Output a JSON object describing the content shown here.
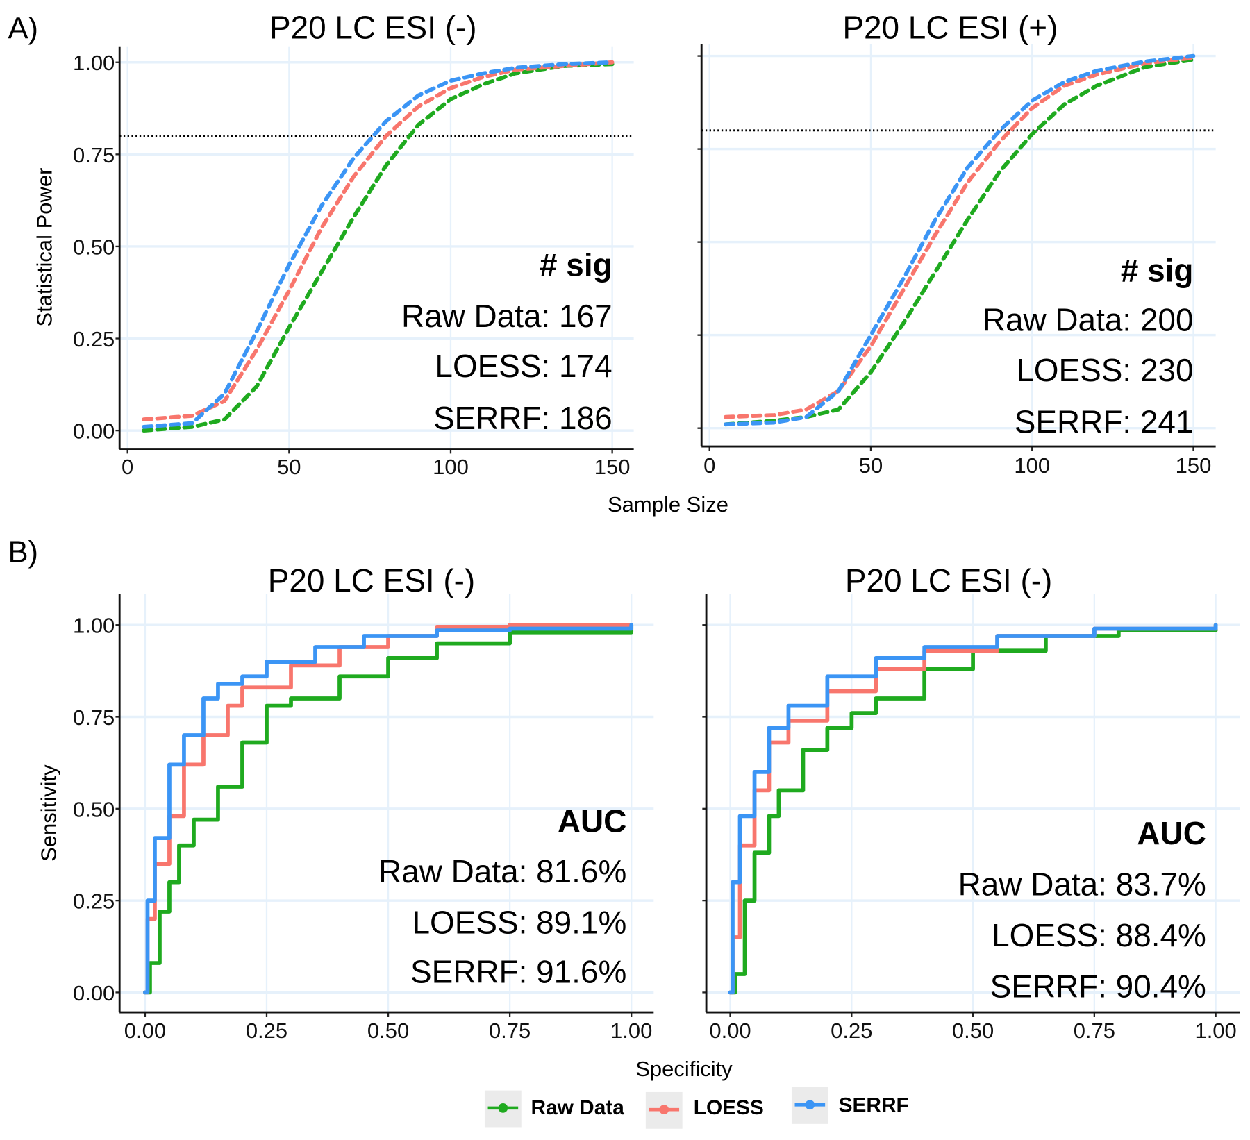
{
  "panel_labels": {
    "a": "A)",
    "b": "B)"
  },
  "annotations": {
    "a_left": {
      "head": "# sig",
      "lines": [
        "Raw Data: 167",
        "LOESS: 174",
        "SERRF: 186"
      ]
    },
    "a_right": {
      "head": "# sig",
      "lines": [
        "Raw Data: 200",
        "LOESS: 230",
        "SERRF: 241"
      ]
    },
    "b_left": {
      "head": "AUC",
      "lines": [
        "Raw Data: 81.6%",
        "LOESS: 89.1%",
        "SERRF: 91.6%"
      ]
    },
    "b_right": {
      "head": "AUC",
      "lines": [
        "Raw Data: 83.7%",
        "LOESS: 88.4%",
        "SERRF: 90.4%"
      ]
    }
  },
  "legend": [
    {
      "name": "Raw Data",
      "color": "#1faa1f"
    },
    {
      "name": "LOESS",
      "color": "#f8766d"
    },
    {
      "name": "SERRF",
      "color": "#3b95f5"
    }
  ],
  "chart_data": [
    {
      "type": "line",
      "title": "P20 LC ESI (-)",
      "xlabel": "Sample Size",
      "ylabel": "Statistical Power",
      "xlim": [
        0,
        150
      ],
      "ylim": [
        0,
        1
      ],
      "xticks": [
        "0",
        "50",
        "100",
        "150"
      ],
      "yticks": [
        "0.00",
        "0.25",
        "0.50",
        "0.75",
        "1.00"
      ],
      "hline": 0.8,
      "line_style": "dashed",
      "x": [
        5,
        20,
        30,
        40,
        50,
        60,
        70,
        80,
        90,
        100,
        110,
        120,
        135,
        150
      ],
      "series": [
        {
          "name": "Raw Data",
          "values": [
            0.0,
            0.01,
            0.03,
            0.12,
            0.28,
            0.43,
            0.58,
            0.72,
            0.83,
            0.9,
            0.94,
            0.97,
            0.99,
            0.995
          ]
        },
        {
          "name": "LOESS",
          "values": [
            0.03,
            0.04,
            0.08,
            0.22,
            0.38,
            0.55,
            0.69,
            0.8,
            0.88,
            0.93,
            0.96,
            0.98,
            0.99,
            1.0
          ]
        },
        {
          "name": "SERRF",
          "values": [
            0.01,
            0.02,
            0.1,
            0.27,
            0.45,
            0.61,
            0.74,
            0.84,
            0.91,
            0.95,
            0.97,
            0.985,
            0.995,
            1.0
          ]
        }
      ]
    },
    {
      "type": "line",
      "title": "P20 LC ESI (+)",
      "xlabel": "Sample Size",
      "ylabel": "Statistical Power",
      "xlim": [
        0,
        150
      ],
      "ylim": [
        0,
        1
      ],
      "xticks": [
        "0",
        "50",
        "100",
        "150"
      ],
      "yticks": [],
      "hline": 0.8,
      "line_style": "dashed",
      "x": [
        5,
        20,
        30,
        40,
        50,
        60,
        70,
        80,
        90,
        100,
        110,
        120,
        135,
        150
      ],
      "series": [
        {
          "name": "Raw Data",
          "values": [
            0.01,
            0.02,
            0.03,
            0.05,
            0.15,
            0.28,
            0.42,
            0.56,
            0.69,
            0.79,
            0.87,
            0.92,
            0.97,
            0.99
          ]
        },
        {
          "name": "LOESS",
          "values": [
            0.03,
            0.035,
            0.05,
            0.1,
            0.22,
            0.37,
            0.52,
            0.66,
            0.77,
            0.86,
            0.92,
            0.95,
            0.98,
            0.995
          ]
        },
        {
          "name": "SERRF",
          "values": [
            0.01,
            0.015,
            0.03,
            0.1,
            0.25,
            0.4,
            0.56,
            0.7,
            0.8,
            0.88,
            0.93,
            0.96,
            0.985,
            1.0
          ]
        }
      ]
    },
    {
      "type": "line",
      "title": "P20 LC ESI (-)",
      "xlabel": "Specificity",
      "ylabel": "Sensitivity",
      "xlim": [
        0,
        1
      ],
      "ylim": [
        0,
        1
      ],
      "xticks": [
        "0.00",
        "0.25",
        "0.50",
        "0.75",
        "1.00"
      ],
      "yticks": [
        "0.00",
        "0.25",
        "0.50",
        "0.75",
        "1.00"
      ],
      "line_style": "solid",
      "series": [
        {
          "name": "Raw Data",
          "x": [
            0,
            0.01,
            0.03,
            0.05,
            0.07,
            0.1,
            0.15,
            0.2,
            0.25,
            0.3,
            0.4,
            0.5,
            0.6,
            0.75,
            1
          ],
          "values": [
            0,
            0.08,
            0.22,
            0.3,
            0.4,
            0.47,
            0.56,
            0.68,
            0.78,
            0.8,
            0.86,
            0.91,
            0.95,
            0.98,
            1
          ]
        },
        {
          "name": "LOESS",
          "x": [
            0,
            0.005,
            0.02,
            0.05,
            0.08,
            0.12,
            0.17,
            0.2,
            0.3,
            0.4,
            0.5,
            0.6,
            0.75,
            1
          ],
          "values": [
            0,
            0.2,
            0.35,
            0.48,
            0.62,
            0.7,
            0.78,
            0.83,
            0.89,
            0.94,
            0.97,
            0.995,
            1,
            1
          ]
        },
        {
          "name": "SERRF",
          "x": [
            0,
            0.005,
            0.02,
            0.05,
            0.08,
            0.12,
            0.15,
            0.2,
            0.25,
            0.35,
            0.45,
            0.6,
            0.75,
            1
          ],
          "values": [
            0,
            0.25,
            0.42,
            0.62,
            0.7,
            0.8,
            0.84,
            0.86,
            0.9,
            0.94,
            0.97,
            0.985,
            0.99,
            1
          ]
        }
      ]
    },
    {
      "type": "line",
      "title": "P20 LC ESI (-)",
      "xlabel": "Specificity",
      "ylabel": "Sensitivity",
      "xlim": [
        0,
        1
      ],
      "ylim": [
        0,
        1
      ],
      "xticks": [
        "0.00",
        "0.25",
        "0.50",
        "0.75",
        "1.00"
      ],
      "yticks": [],
      "line_style": "solid",
      "series": [
        {
          "name": "Raw Data",
          "x": [
            0,
            0.01,
            0.03,
            0.05,
            0.08,
            0.1,
            0.15,
            0.2,
            0.25,
            0.3,
            0.4,
            0.5,
            0.65,
            0.8,
            1
          ],
          "values": [
            0,
            0.05,
            0.25,
            0.38,
            0.48,
            0.55,
            0.66,
            0.72,
            0.76,
            0.8,
            0.88,
            0.93,
            0.97,
            0.985,
            1
          ]
        },
        {
          "name": "LOESS",
          "x": [
            0,
            0.005,
            0.02,
            0.05,
            0.08,
            0.12,
            0.2,
            0.3,
            0.4,
            0.55,
            0.75,
            1
          ],
          "values": [
            0,
            0.15,
            0.4,
            0.55,
            0.68,
            0.74,
            0.82,
            0.88,
            0.93,
            0.97,
            0.99,
            1
          ]
        },
        {
          "name": "SERRF",
          "x": [
            0,
            0.005,
            0.02,
            0.05,
            0.08,
            0.12,
            0.2,
            0.3,
            0.4,
            0.55,
            0.75,
            1
          ],
          "values": [
            0,
            0.3,
            0.48,
            0.6,
            0.72,
            0.78,
            0.86,
            0.91,
            0.94,
            0.97,
            0.99,
            1
          ]
        }
      ]
    }
  ]
}
